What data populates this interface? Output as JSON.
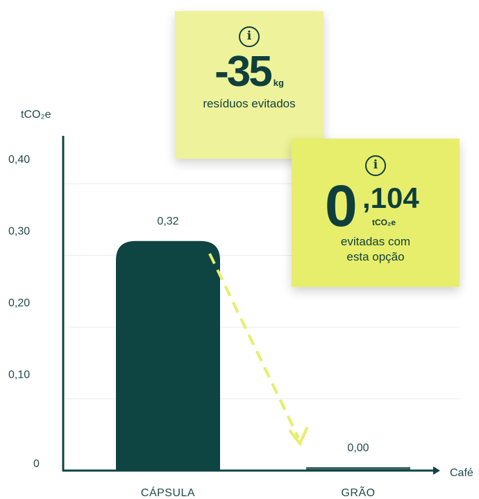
{
  "chart_data": {
    "type": "bar",
    "categories": [
      "CÁPSULA",
      "GRÃO"
    ],
    "values": [
      0.32,
      0.0
    ],
    "value_labels": [
      "0,32",
      "0,00"
    ],
    "ylabel": "tCO₂e",
    "xlabel": "Café",
    "ylim": [
      0,
      0.4
    ],
    "yticks": [
      0,
      0.1,
      0.2,
      0.3,
      0.4
    ],
    "ytick_labels": [
      "0",
      "0,10",
      "0,20",
      "0,30",
      "0,40"
    ],
    "grid": true,
    "colors": {
      "bar_main": "#0e4442",
      "bar_small": "#3d6765",
      "axis": "#0e4442",
      "arrow": "#e6ee6a"
    }
  },
  "cards": {
    "waste": {
      "icon": "info-icon",
      "value": "-35",
      "unit": "kg",
      "text": "resíduos evitados"
    },
    "co2": {
      "icon": "info-icon",
      "value_int": "0",
      "value_dec": ",104",
      "unit": "tCO₂e",
      "text_line1": "evitadas com",
      "text_line2": "esta opção"
    }
  }
}
